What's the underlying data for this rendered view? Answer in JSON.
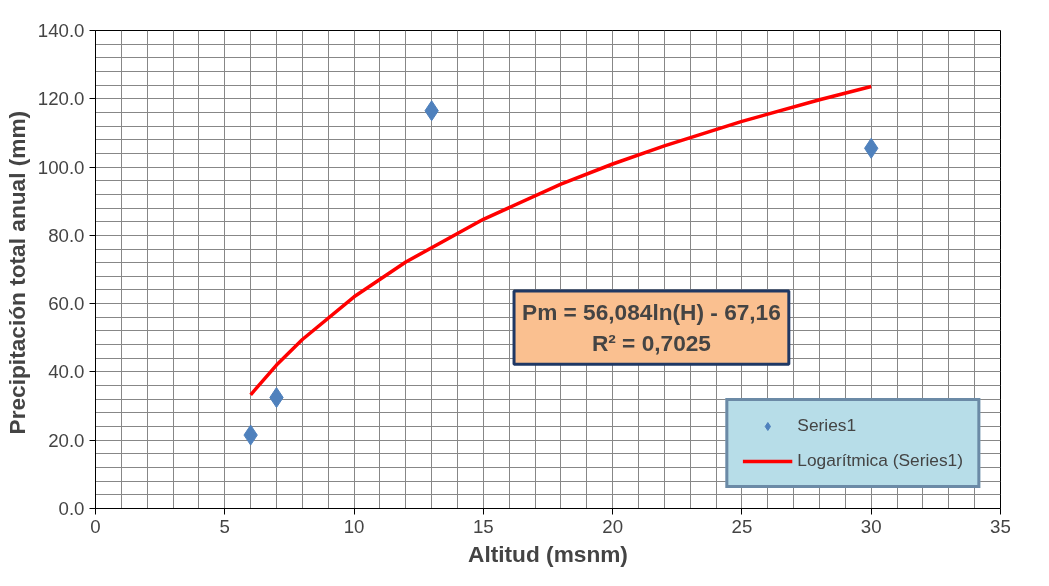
{
  "chart_data": {
    "type": "scatter",
    "xlabel": "Altitud (msnm)",
    "ylabel": "Precipitación total anual  (mm)",
    "xlim": [
      0,
      35
    ],
    "xticks": [
      0,
      5,
      10,
      15,
      20,
      25,
      30,
      35
    ],
    "ylim": [
      0,
      140
    ],
    "yticks": [
      {
        "value": 0,
        "label": "0.0"
      },
      {
        "value": 20,
        "label": "20.0"
      },
      {
        "value": 40,
        "label": "40.0"
      },
      {
        "value": 60,
        "label": "60.0"
      },
      {
        "value": 80,
        "label": "80.0"
      },
      {
        "value": 100,
        "label": "100.0"
      },
      {
        "value": 120,
        "label": "120.0"
      },
      {
        "value": 140,
        "label": "140.0"
      }
    ],
    "grid": true,
    "legend": "bottom right",
    "annotations": [
      "Pm = 56,084ln(H) - 67,16",
      "R² = 0,7025"
    ],
    "series": [
      {
        "name": "Series1",
        "marker": "diamond",
        "color": "#4f81bd",
        "x": [
          6,
          7,
          13,
          30
        ],
        "values": [
          21.5,
          32.5,
          116.5,
          105.5
        ]
      },
      {
        "name": "Logarítmica (Series1)",
        "type": "line",
        "color": "#ff0000",
        "line_style": "solid",
        "x": [
          6,
          7,
          8,
          10,
          12,
          15,
          18,
          20,
          22,
          25,
          28,
          30
        ],
        "values": [
          33.3,
          42.0,
          49.5,
          62.0,
          72.2,
          84.7,
          95.0,
          100.9,
          106.2,
          113.4,
          119.7,
          123.6
        ]
      }
    ]
  }
}
